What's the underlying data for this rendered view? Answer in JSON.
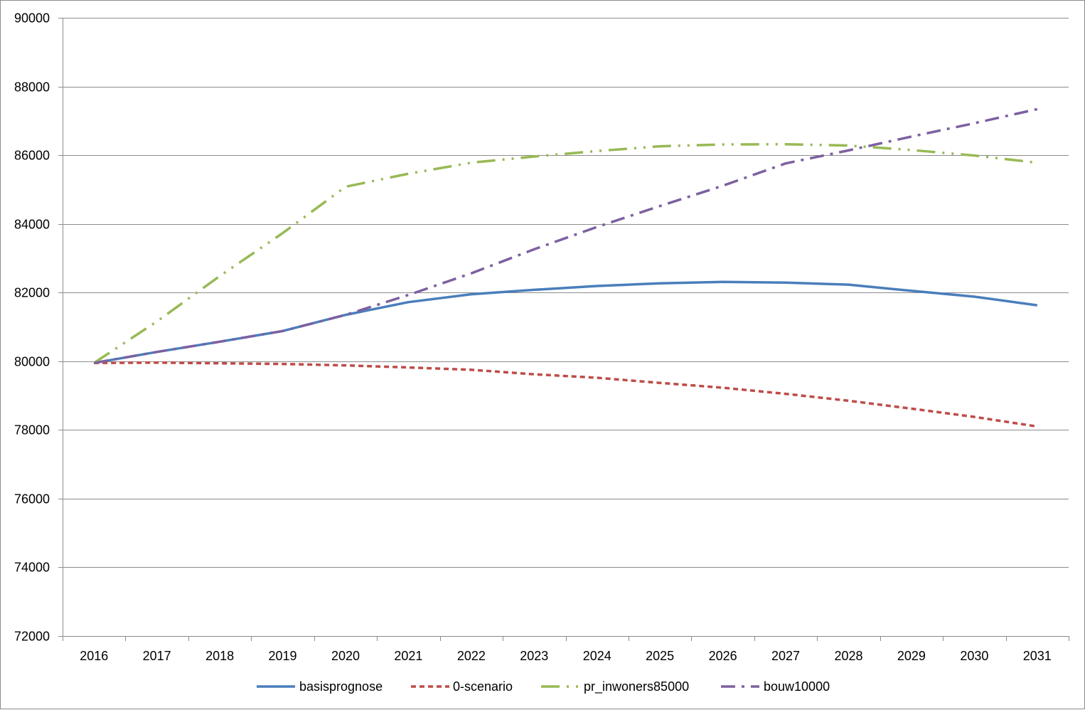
{
  "chart_data": {
    "type": "line",
    "title": "",
    "xlabel": "",
    "ylabel": "",
    "x": [
      "2016",
      "2017",
      "2018",
      "2019",
      "2020",
      "2021",
      "2022",
      "2023",
      "2024",
      "2025",
      "2026",
      "2027",
      "2028",
      "2029",
      "2030",
      "2031"
    ],
    "ylim": [
      72000,
      90000
    ],
    "yticks": [
      72000,
      74000,
      76000,
      78000,
      80000,
      82000,
      84000,
      86000,
      88000,
      90000
    ],
    "grid": "horizontal",
    "legend_position": "bottom",
    "series": [
      {
        "name": "basisprognose",
        "color": "#4a7ebb",
        "dash": "solid",
        "values": [
          79950,
          80270,
          80570,
          80880,
          81350,
          81720,
          81950,
          82080,
          82190,
          82270,
          82310,
          82290,
          82230,
          82050,
          81880,
          81630
        ]
      },
      {
        "name": "0-scenario",
        "color": "#be4b48",
        "dash": "dashed",
        "values": [
          79950,
          79960,
          79940,
          79920,
          79880,
          79820,
          79750,
          79620,
          79520,
          79370,
          79230,
          79050,
          78850,
          78620,
          78380,
          78100
        ]
      },
      {
        "name": "pr_inwoners85000",
        "color": "#98b954",
        "dash": "long-dash-dot-dot",
        "values": [
          79950,
          81160,
          82480,
          83730,
          85080,
          85460,
          85780,
          85960,
          86120,
          86260,
          86310,
          86320,
          86280,
          86150,
          85990,
          85780
        ]
      },
      {
        "name": "bouw10000",
        "color": "#7d60a0",
        "dash": "long-dash-dot",
        "values": [
          79950,
          80270,
          80570,
          80880,
          81350,
          81930,
          82560,
          83260,
          83910,
          84520,
          85110,
          85760,
          86140,
          86540,
          86930,
          87340
        ]
      }
    ]
  }
}
